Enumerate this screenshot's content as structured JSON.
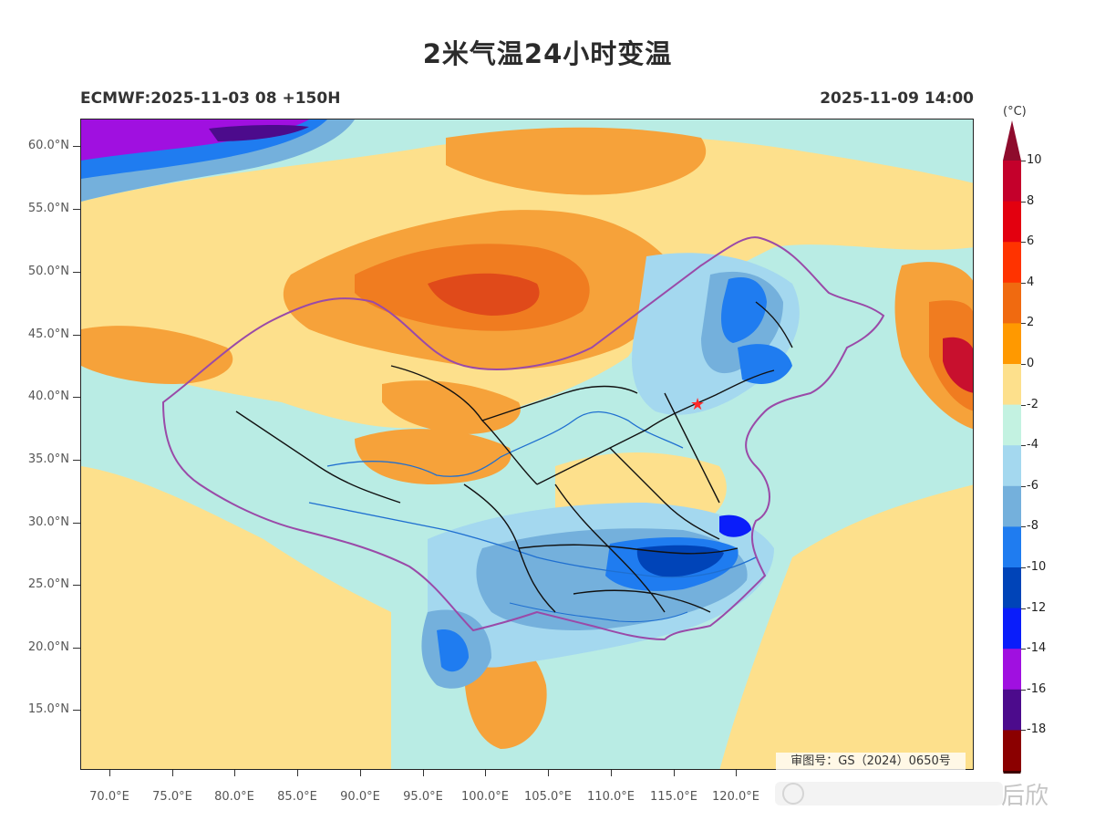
{
  "title": "2米气温24小时变温",
  "subtitle_left": "ECMWF:2025-11-03 08 +150H",
  "subtitle_right": "2025-11-09 14:00",
  "approval_text": "审图号：GS（2024）0650号",
  "watermark_text": "后欣",
  "colorbar": {
    "unit": "(°C)",
    "labels": [
      "10",
      "8",
      "6",
      "4",
      "2",
      "0",
      "-2",
      "-4",
      "-6",
      "-8",
      "-10",
      "-12",
      "-14",
      "-16",
      "-18"
    ],
    "colors": [
      "#c4002b",
      "#e3000f",
      "#ff3300",
      "#f06a10",
      "#ff9900",
      "#fde08c",
      "#c3f2e1",
      "#a4d8ef",
      "#74b0dc",
      "#1f7cf0",
      "#0044b8",
      "#0a1dfa",
      "#a010e0",
      "#4c0b8c",
      "#8b0000"
    ],
    "top_color": "#8e0b2c",
    "bottom_color": "#3d0000"
  },
  "lat_labels": [
    "60.0°N",
    "55.0°N",
    "50.0°N",
    "45.0°N",
    "40.0°N",
    "35.0°N",
    "30.0°N",
    "25.0°N",
    "20.0°N",
    "15.0°N"
  ],
  "lon_labels": [
    "70.0°E",
    "75.0°E",
    "80.0°E",
    "85.0°E",
    "90.0°E",
    "95.0°E",
    "100.0°E",
    "105.0°E",
    "110.0°E",
    "115.0°E",
    "120.0°E"
  ],
  "field_colors": {
    "cool_2": "#b9ece4",
    "cool_4": "#a4d8ef",
    "cool_6": "#74b0dc",
    "cool_8": "#1f7cf0",
    "cool_10": "#0044b8",
    "cool_12": "#0a1dfa",
    "cool_14": "#a010e0",
    "cool_16": "#4c0b8c",
    "warm_0": "#fde08c",
    "warm_2": "#f6a23a",
    "warm_4": "#f07c20",
    "warm_6": "#e04a1a",
    "warm_8": "#c8102e",
    "border": "#9a4aa8",
    "province": "#111111",
    "river": "#1f6fd0",
    "marker": "#ff2a2a"
  }
}
